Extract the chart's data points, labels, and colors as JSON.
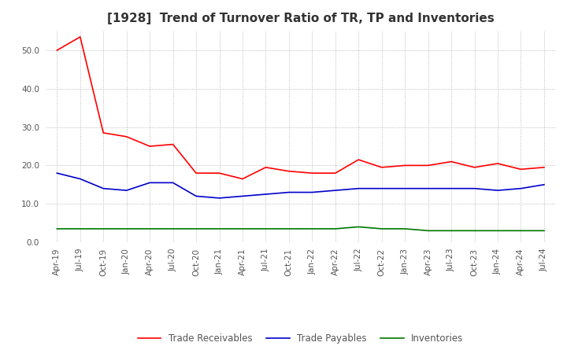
{
  "title": "[1928]  Trend of Turnover Ratio of TR, TP and Inventories",
  "x_labels": [
    "Apr-19",
    "Jul-19",
    "Oct-19",
    "Jan-20",
    "Apr-20",
    "Jul-20",
    "Oct-20",
    "Jan-21",
    "Apr-21",
    "Jul-21",
    "Oct-21",
    "Jan-22",
    "Apr-22",
    "Jul-22",
    "Oct-22",
    "Jan-23",
    "Apr-23",
    "Jul-23",
    "Oct-23",
    "Jan-24",
    "Apr-24",
    "Jul-24"
  ],
  "trade_receivables": [
    50.0,
    53.5,
    28.5,
    27.5,
    25.0,
    25.5,
    18.0,
    18.0,
    16.5,
    19.5,
    18.5,
    18.0,
    18.0,
    21.5,
    19.5,
    20.0,
    20.0,
    21.0,
    19.5,
    20.5,
    19.0,
    19.5
  ],
  "trade_payables": [
    18.0,
    16.5,
    14.0,
    13.5,
    15.5,
    15.5,
    12.0,
    11.5,
    12.0,
    12.5,
    13.0,
    13.0,
    13.5,
    14.0,
    14.0,
    14.0,
    14.0,
    14.0,
    14.0,
    13.5,
    14.0,
    15.0
  ],
  "inventories": [
    3.5,
    3.5,
    3.5,
    3.5,
    3.5,
    3.5,
    3.5,
    3.5,
    3.5,
    3.5,
    3.5,
    3.5,
    3.5,
    4.0,
    3.5,
    3.5,
    3.0,
    3.0,
    3.0,
    3.0,
    3.0,
    3.0
  ],
  "tr_color": "#ff0000",
  "tp_color": "#0000cc",
  "inv_color": "#007700",
  "background_color": "#ffffff",
  "grid_color": "#aaaaaa",
  "title_color": "#333333",
  "tick_label_color": "#555555",
  "legend_text_color": "#555555",
  "ylim": [
    0.0,
    55.0
  ],
  "yticks": [
    0.0,
    10.0,
    20.0,
    30.0,
    40.0,
    50.0
  ],
  "legend_labels": [
    "Trade Receivables",
    "Trade Payables",
    "Inventories"
  ],
  "title_fontsize": 11,
  "tick_fontsize": 7.5,
  "legend_fontsize": 8.5
}
